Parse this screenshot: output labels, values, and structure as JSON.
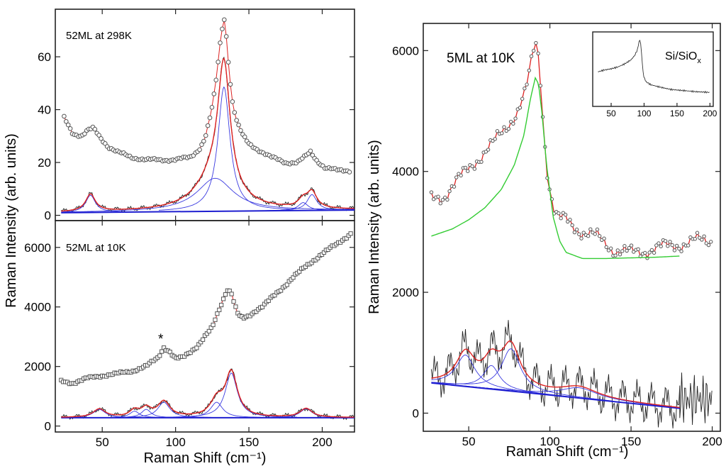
{
  "chart_data": [
    {
      "type": "line",
      "panel": "top-left",
      "annotation": "52ML at 298K",
      "xlabel": "Raman Shift (cm⁻¹)",
      "ylabel": "Raman Intensity (arb. units)",
      "xlim": [
        18,
        222
      ],
      "ylim": [
        -2,
        78
      ],
      "yticks": [
        0,
        20,
        40,
        60
      ],
      "xticks": [
        50,
        100,
        150,
        200
      ],
      "series": [
        {
          "role": "measured (open circles)",
          "color": "#555555",
          "x": [
            24,
            30,
            36,
            40,
            44,
            48,
            54,
            60,
            70,
            80,
            90,
            100,
            110,
            116,
            120,
            124,
            127,
            129,
            131,
            133,
            134,
            135,
            137,
            139,
            142,
            146,
            150,
            156,
            165,
            175,
            183,
            188,
            192,
            196,
            202,
            210,
            220
          ],
          "y": [
            37,
            31,
            30,
            32,
            33,
            30,
            26,
            24,
            22,
            21,
            21,
            21,
            22,
            25,
            29,
            38,
            48,
            58,
            68,
            75,
            72,
            65,
            52,
            42,
            35,
            30,
            27,
            25,
            22,
            20,
            20,
            22,
            24,
            21,
            18,
            17,
            17
          ]
        },
        {
          "role": "fit (sum)",
          "color": "#dd2222",
          "curve": "sum"
        },
        {
          "role": "baseline",
          "color": "#1f1fd0",
          "curve": "baseline"
        },
        {
          "role": "subtracted spectrum",
          "color": "#222222",
          "curve": "sub"
        }
      ],
      "peaks": [
        {
          "center": 42,
          "height": 6.5,
          "width": 4
        },
        {
          "center": 127,
          "height": 12.5,
          "width": 15
        },
        {
          "center": 133,
          "height": 47,
          "width": 5
        },
        {
          "center": 187,
          "height": 3,
          "width": 4
        },
        {
          "center": 193,
          "height": 6,
          "width": 4
        }
      ],
      "baseline": {
        "start": 1,
        "end": 2
      }
    },
    {
      "type": "line",
      "panel": "bottom-left",
      "annotation": "52ML at 10K",
      "marker_label": "*",
      "xlim": [
        18,
        222
      ],
      "ylim": [
        -200,
        6900
      ],
      "yticks": [
        0,
        2000,
        4000,
        6000
      ],
      "xticks": [
        50,
        100,
        150,
        200
      ],
      "series": [
        {
          "role": "measured (open squares)",
          "color": "#555555",
          "x": [
            22,
            30,
            40,
            50,
            60,
            70,
            80,
            88,
            92,
            96,
            100,
            105,
            110,
            115,
            120,
            125,
            128,
            132,
            135,
            138,
            140,
            143,
            146,
            150,
            155,
            160,
            170,
            180,
            190,
            200,
            210,
            220
          ],
          "y": [
            1500,
            1450,
            1600,
            1700,
            1750,
            1850,
            2000,
            2300,
            2650,
            2500,
            2250,
            2300,
            2500,
            2700,
            3000,
            3300,
            3700,
            4200,
            4600,
            4500,
            4100,
            3700,
            3600,
            3700,
            3900,
            4050,
            4500,
            5000,
            5400,
            5800,
            6100,
            6500
          ]
        },
        {
          "role": "fit (sum)",
          "color": "#dd2222",
          "curve": "sum"
        },
        {
          "role": "baseline",
          "color": "#1f1fd0",
          "curve": "baseline"
        },
        {
          "role": "subtracted spectrum",
          "color": "#222222",
          "curve": "sub"
        }
      ],
      "peaks": [
        {
          "center": 48,
          "height": 280,
          "width": 5
        },
        {
          "center": 72,
          "height": 220,
          "width": 4
        },
        {
          "center": 80,
          "height": 280,
          "width": 4
        },
        {
          "center": 92,
          "height": 520,
          "width": 5
        },
        {
          "center": 128,
          "height": 520,
          "width": 5
        },
        {
          "center": 138,
          "height": 1500,
          "width": 5
        },
        {
          "center": 189,
          "height": 300,
          "width": 5
        }
      ],
      "baseline": {
        "start": 280,
        "end": 280
      }
    },
    {
      "type": "line",
      "panel": "right",
      "annotation": "5ML at 10K",
      "xlabel": "Raman Shift (cm⁻¹)",
      "ylabel": "Raman Intensity (arb. units)",
      "xlim": [
        22,
        205
      ],
      "ylim": [
        -300,
        6450
      ],
      "yticks": [
        0,
        2000,
        4000,
        6000
      ],
      "xticks": [
        50,
        100,
        150,
        200
      ],
      "series": [
        {
          "role": "measured (open circles) + red line",
          "color": "#dd2222",
          "x": [
            27,
            35,
            45,
            55,
            65,
            72,
            80,
            85,
            88,
            90,
            92,
            94,
            96,
            98,
            100,
            103,
            106,
            110,
            115,
            120,
            130,
            140,
            150,
            160,
            170,
            180,
            190,
            200
          ],
          "y": [
            3550,
            3600,
            3900,
            4200,
            4450,
            4700,
            5000,
            5300,
            5700,
            6000,
            6150,
            5600,
            4800,
            4100,
            3700,
            3300,
            3200,
            3200,
            3100,
            3000,
            2900,
            2700,
            2650,
            2700,
            2750,
            2800,
            2850,
            2850
          ]
        },
        {
          "role": "background fit",
          "color": "#33cc33",
          "x": [
            27,
            40,
            50,
            60,
            70,
            78,
            84,
            88,
            91,
            93,
            95,
            98,
            102,
            106,
            110,
            120,
            135,
            150,
            165,
            180
          ],
          "y": [
            2930,
            3050,
            3200,
            3400,
            3700,
            4100,
            4600,
            5200,
            5550,
            5450,
            5000,
            4100,
            3250,
            2850,
            2660,
            2560,
            2560,
            2570,
            2580,
            2600
          ]
        },
        {
          "role": "fit (sum)",
          "color": "#dd2222",
          "curve": "sum"
        },
        {
          "role": "baseline",
          "color": "#1f1fd0",
          "curve": "baseline"
        },
        {
          "role": "subtracted spectrum",
          "color": "#222222",
          "curve": "sub"
        }
      ],
      "peaks": [
        {
          "center": 48,
          "height": 520,
          "width": 7
        },
        {
          "center": 64,
          "height": 390,
          "width": 6
        },
        {
          "center": 76,
          "height": 700,
          "width": 7
        },
        {
          "center": 118,
          "height": 170,
          "width": 14
        }
      ],
      "baseline": {
        "start": 500,
        "end": 80,
        "xrange": [
          27,
          180
        ]
      },
      "inset": {
        "label_base": "Si/SiO",
        "label_sub": "x",
        "xlim": [
          22,
          205
        ],
        "xticks": [
          50,
          100,
          150,
          200
        ],
        "x": [
          30,
          40,
          50,
          60,
          70,
          80,
          86,
          90,
          93,
          95,
          97,
          99,
          103,
          110,
          120,
          140,
          160,
          180,
          200
        ],
        "y": [
          0.42,
          0.45,
          0.47,
          0.5,
          0.55,
          0.62,
          0.7,
          0.8,
          0.97,
          0.9,
          0.6,
          0.35,
          0.25,
          0.2,
          0.17,
          0.12,
          0.1,
          0.08,
          0.07
        ]
      }
    }
  ]
}
